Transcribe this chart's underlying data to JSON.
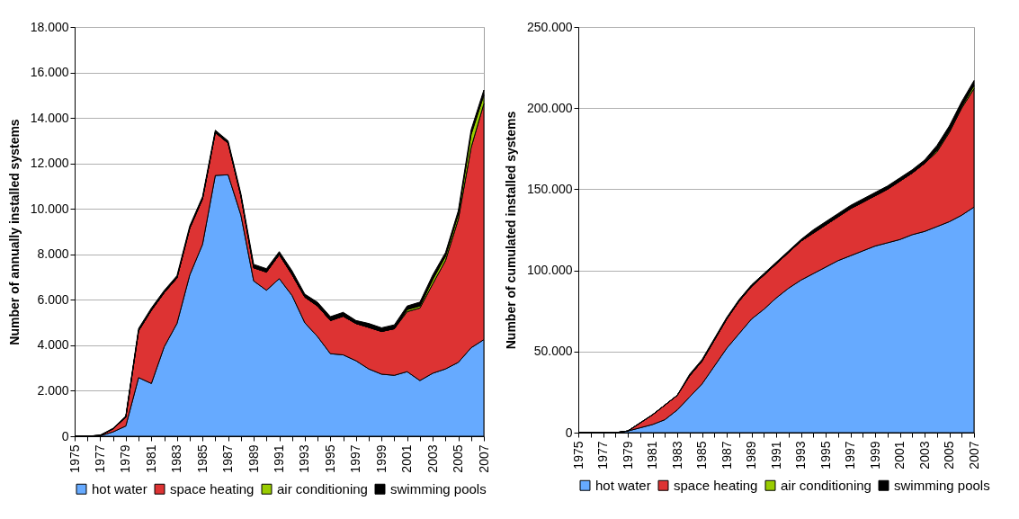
{
  "chart_data": [
    {
      "type": "area",
      "stacked": true,
      "ylabel": "Number of annually installed systems",
      "grid": "y",
      "legend": "bottom",
      "categories": [
        "1975",
        null,
        "1977",
        null,
        "1979",
        null,
        "1981",
        null,
        "1983",
        null,
        "1985",
        null,
        "1987",
        null,
        "1989",
        null,
        "1991",
        null,
        "1993",
        null,
        "1995",
        null,
        "1997",
        null,
        "1999",
        null,
        "2001",
        null,
        "2003",
        null,
        "2005",
        null,
        "2007"
      ],
      "ylim": [
        0,
        18000
      ],
      "yticks": [
        0,
        {
          "value": 2000,
          "label": "2.000"
        },
        {
          "value": 4000,
          "label": "4.000"
        },
        {
          "value": 6000,
          "label": "6.000"
        },
        {
          "value": 8000,
          "label": "8.000"
        },
        {
          "value": 10000,
          "label": "10.000"
        },
        {
          "value": 12000,
          "label": "12.000"
        },
        {
          "value": 14000,
          "label": "14.000"
        },
        {
          "value": 16000,
          "label": "16.000"
        },
        {
          "value": 18000,
          "label": "18.000"
        }
      ],
      "series": [
        {
          "name": "hot water",
          "color": "#66aaff",
          "values": [
            0,
            0,
            20,
            190,
            450,
            2580,
            2320,
            3930,
            4960,
            7090,
            8440,
            11470,
            11500,
            9730,
            6830,
            6420,
            6930,
            6190,
            4990,
            4380,
            3630,
            3580,
            3320,
            2960,
            2730,
            2680,
            2840,
            2450,
            2770,
            2960,
            3250,
            3890,
            4250
          ]
        },
        {
          "name": "space heating",
          "color": "#dd3333",
          "values": [
            0,
            0,
            20,
            130,
            390,
            2060,
            3220,
            2380,
            2000,
            2060,
            2000,
            1890,
            1390,
            840,
            580,
            800,
            1060,
            920,
            1130,
            1350,
            1460,
            1700,
            1640,
            1830,
            1880,
            2050,
            2640,
            3190,
            3930,
            4770,
            6290,
            8800,
            10380
          ]
        },
        {
          "name": "air conditioning",
          "color": "#99cc00",
          "values": [
            0,
            0,
            0,
            0,
            0,
            0,
            0,
            0,
            0,
            0,
            0,
            0,
            0,
            0,
            0,
            0,
            0,
            0,
            0,
            0,
            0,
            0,
            0,
            0,
            0,
            0,
            90,
            90,
            190,
            190,
            230,
            580,
            380
          ]
        },
        {
          "name": "swimming pools",
          "color": "#000000",
          "values": [
            0,
            0,
            10,
            30,
            50,
            100,
            100,
            100,
            100,
            100,
            100,
            100,
            100,
            100,
            150,
            150,
            130,
            170,
            130,
            160,
            170,
            170,
            130,
            170,
            160,
            170,
            160,
            170,
            200,
            160,
            150,
            200,
            220
          ]
        }
      ]
    },
    {
      "type": "area",
      "stacked": true,
      "ylabel": "Number of cumulated installed systems",
      "grid": "y",
      "legend": "bottom",
      "categories": [
        "1975",
        null,
        "1977",
        null,
        "1979",
        null,
        "1981",
        null,
        "1983",
        null,
        "1985",
        null,
        "1987",
        null,
        "1989",
        null,
        "1991",
        null,
        "1993",
        null,
        "1995",
        null,
        "1997",
        null,
        "1999",
        null,
        "2001",
        null,
        "2003",
        null,
        "2005",
        null,
        "2007"
      ],
      "ylim": [
        0,
        250000
      ],
      "yticks": [
        0,
        {
          "value": 50000,
          "label": "50.000"
        },
        {
          "value": 100000,
          "label": "100.000"
        },
        {
          "value": 150000,
          "label": "150.000"
        },
        {
          "value": 200000,
          "label": "200.000"
        },
        {
          "value": 250000,
          "label": "250.000"
        }
      ],
      "series": [
        {
          "name": "hot water",
          "color": "#66aaff",
          "values": [
            0,
            0,
            0,
            0,
            1000,
            3000,
            5000,
            8000,
            14000,
            22000,
            30000,
            41000,
            52000,
            61000,
            70000,
            76000,
            83000,
            89000,
            94000,
            98000,
            102000,
            106000,
            109000,
            112000,
            115000,
            117000,
            119000,
            122000,
            124000,
            127000,
            130000,
            134000,
            139000
          ]
        },
        {
          "name": "space heating",
          "color": "#dd3333",
          "values": [
            0,
            0,
            0,
            0,
            0,
            3000,
            6000,
            9000,
            9000,
            13000,
            14000,
            16000,
            18000,
            20000,
            20000,
            21000,
            21000,
            22000,
            24000,
            25000,
            26000,
            27000,
            29000,
            30000,
            31000,
            33000,
            36000,
            38000,
            42000,
            46000,
            55000,
            66000,
            73000
          ]
        },
        {
          "name": "air conditioning",
          "color": "#99cc00",
          "values": [
            0,
            0,
            0,
            0,
            0,
            0,
            0,
            0,
            0,
            0,
            0,
            0,
            0,
            0,
            0,
            0,
            0,
            0,
            0,
            0,
            0,
            0,
            0,
            0,
            0,
            0,
            0,
            0,
            0,
            1000,
            1000,
            1000,
            2000
          ]
        },
        {
          "name": "swimming pools",
          "color": "#000000",
          "values": [
            0,
            0,
            0,
            0,
            0,
            0,
            0,
            0,
            0,
            1000,
            1000,
            1000,
            1000,
            1000,
            1000,
            1000,
            1000,
            1000,
            1000,
            2000,
            2000,
            2000,
            2000,
            2000,
            2000,
            2000,
            2000,
            2000,
            2000,
            3000,
            3000,
            3000,
            3000
          ]
        }
      ]
    }
  ]
}
